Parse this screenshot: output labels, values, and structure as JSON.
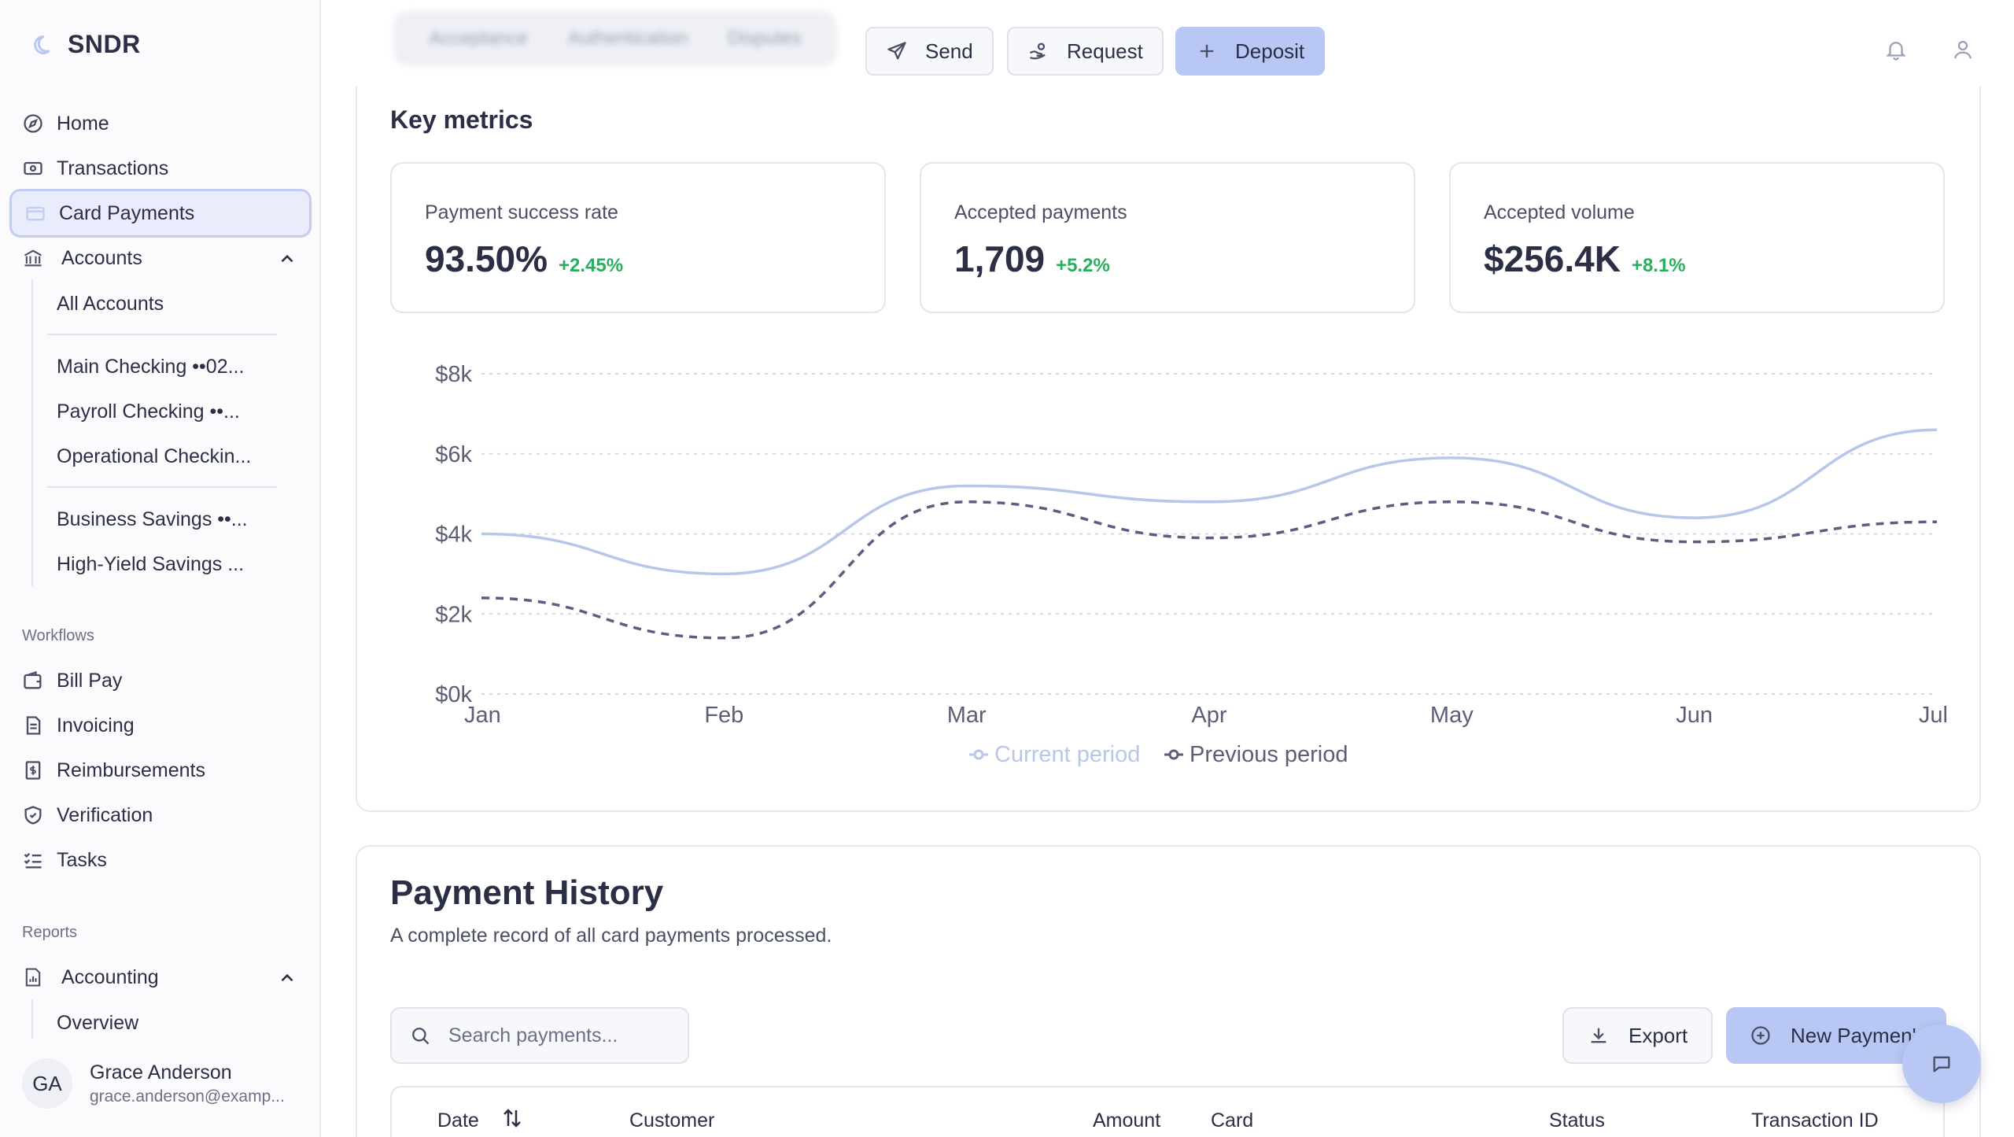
{
  "brand": {
    "name": "SNDR"
  },
  "nav": {
    "home": "Home",
    "transactions": "Transactions",
    "card_payments": "Card Payments",
    "accounts": "Accounts",
    "accounts_sub": [
      "All Accounts",
      "Main Checking ••02...",
      "Payroll Checking ••...",
      "Operational Checkin...",
      "Business Savings ••...",
      "High-Yield Savings ..."
    ],
    "workflows_label": "Workflows",
    "bill_pay": "Bill Pay",
    "invoicing": "Invoicing",
    "reimbursements": "Reimbursements",
    "verification": "Verification",
    "tasks": "Tasks",
    "reports_label": "Reports",
    "accounting": "Accounting",
    "accounting_sub": [
      "Overview"
    ]
  },
  "user": {
    "initials": "GA",
    "name": "Grace Anderson",
    "email": "grace.anderson@examp..."
  },
  "topbar": {
    "tabs": [
      "Acceptance",
      "Authentication",
      "Disputes"
    ],
    "send": "Send",
    "request": "Request",
    "deposit": "Deposit"
  },
  "key_metrics": {
    "title": "Key metrics",
    "items": [
      {
        "label": "Payment success rate",
        "value": "93.50%",
        "delta": "+2.45%"
      },
      {
        "label": "Accepted payments",
        "value": "1,709",
        "delta": "+5.2%"
      },
      {
        "label": "Accepted volume",
        "value": "$256.4K",
        "delta": "+8.1%"
      }
    ]
  },
  "chart_data": {
    "type": "line",
    "x": [
      "Jan",
      "Feb",
      "Mar",
      "Apr",
      "May",
      "Jun",
      "Jul"
    ],
    "y_ticks": [
      "$0k",
      "$2k",
      "$4k",
      "$6k",
      "$8k"
    ],
    "ylim": [
      0,
      8000
    ],
    "grid": true,
    "legend": "bottom-center",
    "series": [
      {
        "name": "Current period",
        "values": [
          4000,
          3000,
          5200,
          4800,
          5900,
          4400,
          6600
        ],
        "color": "#b7c7ea",
        "style": "solid"
      },
      {
        "name": "Previous period",
        "values": [
          2400,
          1400,
          4800,
          3900,
          4800,
          3800,
          4300
        ],
        "color": "#5a5f80",
        "style": "dashed"
      }
    ]
  },
  "payment_history": {
    "title": "Payment History",
    "subtitle": "A complete record of all card payments processed.",
    "search_placeholder": "Search payments...",
    "export": "Export",
    "new_payment": "New Paymen'",
    "columns": [
      "Date",
      "Customer",
      "Amount",
      "Card",
      "Status",
      "Transaction ID"
    ]
  }
}
